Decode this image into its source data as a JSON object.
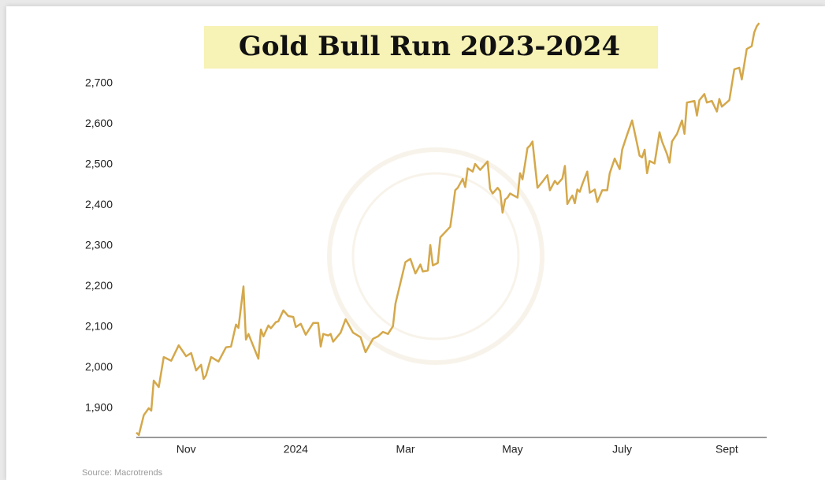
{
  "chart_data": {
    "type": "line",
    "title": "Gold Bull Run 2023-2024",
    "source": "Source: Macrotrends",
    "color": "#d4a84b",
    "x": [
      0,
      1,
      3,
      5,
      6,
      7,
      9,
      11,
      14,
      17,
      20,
      22,
      24,
      26,
      27,
      28,
      30,
      33,
      36,
      38,
      40,
      41,
      43,
      44,
      45,
      49,
      50,
      51,
      53,
      54,
      56,
      57,
      59,
      61,
      63,
      64,
      66,
      68,
      71,
      73,
      74,
      75,
      77,
      78,
      79,
      82,
      84,
      87,
      90,
      92,
      95,
      97,
      99,
      101,
      103,
      104,
      108,
      110,
      112,
      114,
      115,
      117,
      118,
      119,
      121,
      122,
      126,
      127,
      128,
      129,
      131,
      132,
      133,
      135,
      136,
      138,
      141,
      142,
      143,
      145,
      146,
      147,
      148,
      149,
      150,
      153,
      154,
      155,
      156,
      157,
      158,
      159,
      161,
      163,
      165,
      166,
      168,
      169,
      171,
      172,
      173,
      174,
      175,
      176,
      177,
      178,
      179,
      181,
      182,
      184,
      185,
      187,
      189,
      190,
      192,
      194,
      195,
      197,
      199,
      201,
      202,
      203,
      204,
      205,
      206,
      208,
      210,
      211,
      213,
      214,
      215,
      217,
      219,
      220,
      221,
      224,
      225,
      226,
      228,
      229,
      231,
      233,
      234,
      235,
      238,
      240,
      242,
      243,
      245,
      247,
      248,
      249,
      250
    ],
    "values": [
      1840,
      1834,
      1883,
      1900,
      1894,
      1968,
      1952,
      2026,
      2017,
      2055,
      2028,
      2036,
      1993,
      2007,
      1972,
      1981,
      2026,
      2015,
      2050,
      2052,
      2106,
      2098,
      2200,
      2069,
      2083,
      2022,
      2094,
      2077,
      2104,
      2097,
      2112,
      2114,
      2141,
      2127,
      2125,
      2100,
      2108,
      2081,
      2110,
      2110,
      2052,
      2083,
      2079,
      2083,
      2064,
      2086,
      2119,
      2086,
      2075,
      2038,
      2071,
      2077,
      2088,
      2083,
      2102,
      2158,
      2260,
      2268,
      2232,
      2254,
      2237,
      2239,
      2302,
      2252,
      2258,
      2321,
      2347,
      2391,
      2437,
      2443,
      2465,
      2445,
      2491,
      2483,
      2502,
      2487,
      2508,
      2440,
      2429,
      2443,
      2435,
      2382,
      2414,
      2419,
      2429,
      2419,
      2479,
      2464,
      2502,
      2541,
      2547,
      2557,
      2443,
      2458,
      2474,
      2437,
      2460,
      2452,
      2466,
      2497,
      2403,
      2414,
      2424,
      2405,
      2439,
      2433,
      2452,
      2483,
      2431,
      2439,
      2408,
      2437,
      2437,
      2479,
      2515,
      2489,
      2537,
      2574,
      2609,
      2551,
      2522,
      2518,
      2537,
      2479,
      2509,
      2503,
      2580,
      2557,
      2526,
      2505,
      2557,
      2576,
      2609,
      2576,
      2653,
      2657,
      2621,
      2659,
      2674,
      2653,
      2657,
      2631,
      2662,
      2643,
      2659,
      2735,
      2739,
      2710,
      2785,
      2792,
      2826,
      2841,
      2849
    ],
    "xlim": [
      0,
      253
    ],
    "xticks": [
      {
        "value": 20,
        "label": "Nov"
      },
      {
        "value": 64,
        "label": "2024"
      },
      {
        "value": 108,
        "label": "Mar"
      },
      {
        "value": 151,
        "label": "May"
      },
      {
        "value": 195,
        "label": "July"
      },
      {
        "value": 237,
        "label": "Sept"
      }
    ],
    "ylim": [
      1828,
      2870
    ],
    "yticks": [
      {
        "value": 1900,
        "label": "1,900"
      },
      {
        "value": 2000,
        "label": "2,000"
      },
      {
        "value": 2100,
        "label": "2,100"
      },
      {
        "value": 2200,
        "label": "2,200"
      },
      {
        "value": 2300,
        "label": "2,300"
      },
      {
        "value": 2400,
        "label": "2,400"
      },
      {
        "value": 2500,
        "label": "2,500"
      },
      {
        "value": 2600,
        "label": "2,600"
      },
      {
        "value": 2700,
        "label": "2,700"
      }
    ],
    "grid": false
  }
}
